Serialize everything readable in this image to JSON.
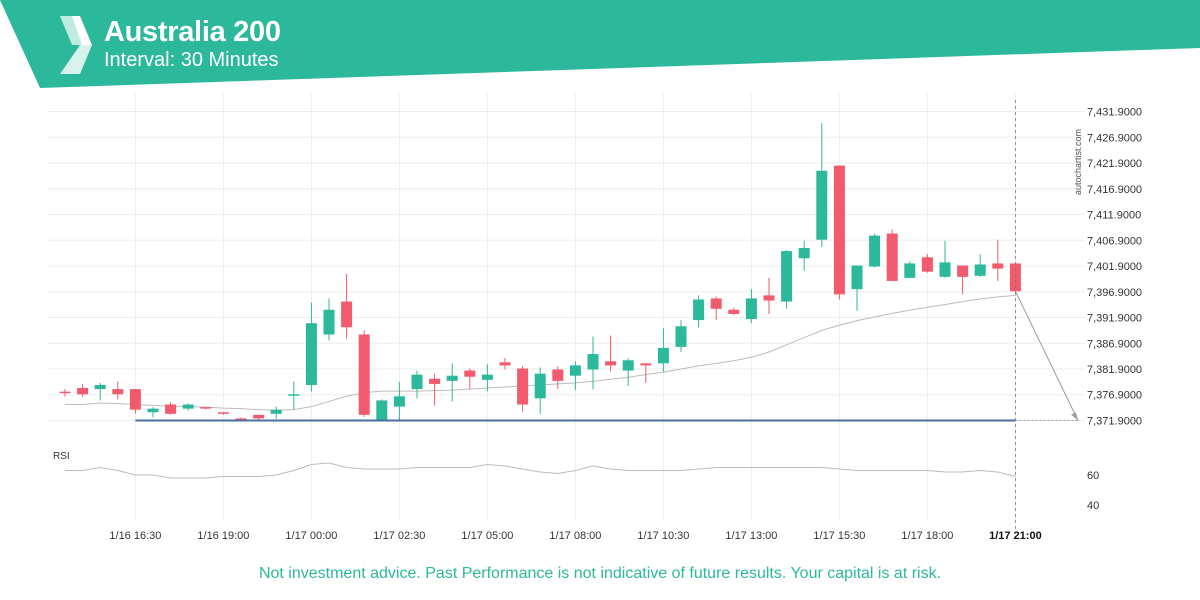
{
  "header": {
    "title": "Australia 200",
    "subtitle": "Interval: 30 Minutes"
  },
  "footer": {
    "note": "Not investment advice. Past Performance is not indicative of future results. Your capital is at risk."
  },
  "watermark": "autochartist.com",
  "colors": {
    "brand": "#2cb89b",
    "bull": "#2cb89b",
    "bear": "#f25a6e",
    "support_line": "#4a6fa5",
    "moving_average": "#bbbbbb",
    "rsi_line": "#bbbbbb",
    "grid": "#eeeeee"
  },
  "chart_data": {
    "type": "candlestick",
    "instrument": "Australia 200",
    "price_ticks": [
      "7,431.9000",
      "7,426.9000",
      "7,421.9000",
      "7,416.9000",
      "7,411.9000",
      "7,406.9000",
      "7,401.9000",
      "7,396.9000",
      "7,391.9000",
      "7,386.9000",
      "7,381.9000",
      "7,376.9000",
      "7,371.9000"
    ],
    "price_tick_values": [
      7431.9,
      7426.9,
      7421.9,
      7416.9,
      7411.9,
      7406.9,
      7401.9,
      7396.9,
      7391.9,
      7386.9,
      7381.9,
      7376.9,
      7371.9
    ],
    "ylim": [
      7368.5,
      7435.5
    ],
    "time_ticks": [
      "1/16 16:30",
      "1/16 19:00",
      "1/17 00:00",
      "1/17 02:30",
      "1/17 05:00",
      "1/17 08:00",
      "1/17 10:30",
      "1/17 13:00",
      "1/17 15:30",
      "1/17 18:00",
      "1/17 21:00"
    ],
    "time_tick_index": [
      4,
      9,
      14,
      19,
      24,
      29,
      34,
      39,
      44,
      49,
      54
    ],
    "time_tick_bold_index": 10,
    "candles": [
      {
        "o": 7377.5,
        "h": 7378.0,
        "l": 7376.5,
        "c": 7377.3
      },
      {
        "o": 7378.2,
        "h": 7379.0,
        "l": 7376.5,
        "c": 7377.0
      },
      {
        "o": 7378.0,
        "h": 7379.2,
        "l": 7375.8,
        "c": 7378.8
      },
      {
        "o": 7378.0,
        "h": 7379.5,
        "l": 7376.0,
        "c": 7377.0
      },
      {
        "o": 7378.0,
        "h": 7378.0,
        "l": 7373.2,
        "c": 7374.0
      },
      {
        "o": 7373.5,
        "h": 7374.5,
        "l": 7372.5,
        "c": 7374.2
      },
      {
        "o": 7375.0,
        "h": 7375.5,
        "l": 7373.0,
        "c": 7373.2
      },
      {
        "o": 7374.2,
        "h": 7375.2,
        "l": 7373.8,
        "c": 7375.0
      },
      {
        "o": 7374.5,
        "h": 7374.5,
        "l": 7374.0,
        "c": 7374.3
      },
      {
        "o": 7373.5,
        "h": 7373.5,
        "l": 7373.0,
        "c": 7373.3
      },
      {
        "o": 7372.3,
        "h": 7372.5,
        "l": 7371.9,
        "c": 7372.2
      },
      {
        "o": 7373.0,
        "h": 7373.0,
        "l": 7371.9,
        "c": 7372.3
      },
      {
        "o": 7373.2,
        "h": 7374.6,
        "l": 7372.2,
        "c": 7374.0
      },
      {
        "o": 7377.0,
        "h": 7379.5,
        "l": 7374.0,
        "c": 7377.0
      },
      {
        "o": 7378.8,
        "h": 7394.8,
        "l": 7377.5,
        "c": 7390.8
      },
      {
        "o": 7388.6,
        "h": 7395.6,
        "l": 7387.4,
        "c": 7393.4
      },
      {
        "o": 7395.0,
        "h": 7400.4,
        "l": 7387.8,
        "c": 7390.0
      },
      {
        "o": 7388.6,
        "h": 7389.4,
        "l": 7372.6,
        "c": 7373.0
      },
      {
        "o": 7372.0,
        "h": 7376.0,
        "l": 7371.9,
        "c": 7375.8
      },
      {
        "o": 7374.6,
        "h": 7379.4,
        "l": 7371.9,
        "c": 7376.6
      },
      {
        "o": 7378.0,
        "h": 7381.6,
        "l": 7376.2,
        "c": 7380.8
      },
      {
        "o": 7380.0,
        "h": 7381.0,
        "l": 7374.8,
        "c": 7379.0
      },
      {
        "o": 7379.6,
        "h": 7383.0,
        "l": 7375.6,
        "c": 7380.6
      },
      {
        "o": 7381.6,
        "h": 7382.0,
        "l": 7378.0,
        "c": 7380.4
      },
      {
        "o": 7379.8,
        "h": 7382.8,
        "l": 7377.6,
        "c": 7380.8
      },
      {
        "o": 7383.2,
        "h": 7384.0,
        "l": 7381.8,
        "c": 7382.6
      },
      {
        "o": 7382.0,
        "h": 7382.5,
        "l": 7373.6,
        "c": 7375.0
      },
      {
        "o": 7376.2,
        "h": 7382.2,
        "l": 7373.2,
        "c": 7381.0
      },
      {
        "o": 7381.8,
        "h": 7382.4,
        "l": 7378.0,
        "c": 7379.6
      },
      {
        "o": 7380.6,
        "h": 7383.4,
        "l": 7377.8,
        "c": 7382.6
      },
      {
        "o": 7381.8,
        "h": 7388.2,
        "l": 7378.0,
        "c": 7384.8
      },
      {
        "o": 7383.4,
        "h": 7388.4,
        "l": 7381.4,
        "c": 7382.6
      },
      {
        "o": 7381.6,
        "h": 7384.0,
        "l": 7378.6,
        "c": 7383.6
      },
      {
        "o": 7383.0,
        "h": 7383.0,
        "l": 7379.2,
        "c": 7382.6
      },
      {
        "o": 7383.0,
        "h": 7389.8,
        "l": 7381.4,
        "c": 7386.0
      },
      {
        "o": 7386.2,
        "h": 7391.4,
        "l": 7385.2,
        "c": 7390.2
      },
      {
        "o": 7391.4,
        "h": 7396.2,
        "l": 7390.0,
        "c": 7395.4
      },
      {
        "o": 7395.6,
        "h": 7396.0,
        "l": 7391.4,
        "c": 7393.6
      },
      {
        "o": 7393.4,
        "h": 7393.8,
        "l": 7392.4,
        "c": 7392.6
      },
      {
        "o": 7391.6,
        "h": 7397.4,
        "l": 7390.8,
        "c": 7395.6
      },
      {
        "o": 7396.2,
        "h": 7399.6,
        "l": 7392.6,
        "c": 7395.2
      },
      {
        "o": 7395.0,
        "h": 7405.0,
        "l": 7393.6,
        "c": 7404.8
      },
      {
        "o": 7403.4,
        "h": 7406.8,
        "l": 7401.0,
        "c": 7405.4
      },
      {
        "o": 7407.0,
        "h": 7429.6,
        "l": 7405.6,
        "c": 7420.4
      },
      {
        "o": 7421.4,
        "h": 7421.4,
        "l": 7395.4,
        "c": 7396.4
      },
      {
        "o": 7397.4,
        "h": 7402.0,
        "l": 7393.2,
        "c": 7402.0
      },
      {
        "o": 7401.8,
        "h": 7408.2,
        "l": 7401.6,
        "c": 7407.8
      },
      {
        "o": 7408.2,
        "h": 7409.0,
        "l": 7399.0,
        "c": 7399.0
      },
      {
        "o": 7399.6,
        "h": 7402.8,
        "l": 7399.6,
        "c": 7402.4
      },
      {
        "o": 7403.6,
        "h": 7404.2,
        "l": 7400.6,
        "c": 7400.8
      },
      {
        "o": 7399.8,
        "h": 7406.8,
        "l": 7399.6,
        "c": 7402.6
      },
      {
        "o": 7402.0,
        "h": 7402.0,
        "l": 7396.4,
        "c": 7399.8
      },
      {
        "o": 7400.0,
        "h": 7404.2,
        "l": 7399.8,
        "c": 7402.2
      },
      {
        "o": 7402.4,
        "h": 7407.0,
        "l": 7399.0,
        "c": 7401.4
      },
      {
        "o": 7402.4,
        "h": 7402.4,
        "l": 7396.6,
        "c": 7397.0
      }
    ],
    "moving_average": [
      7375.0,
      7375.0,
      7375.3,
      7375.2,
      7375.0,
      7374.8,
      7374.7,
      7374.6,
      7374.5,
      7374.3,
      7374.2,
      7374.0,
      7373.9,
      7374.0,
      7374.6,
      7375.6,
      7376.6,
      7377.3,
      7377.6,
      7377.6,
      7377.6,
      7377.7,
      7377.8,
      7378.0,
      7378.2,
      7378.4,
      7378.6,
      7378.8,
      7379.0,
      7379.2,
      7379.5,
      7379.9,
      7380.3,
      7380.8,
      7381.3,
      7381.9,
      7382.5,
      7383.0,
      7383.5,
      7384.2,
      7385.2,
      7386.6,
      7388.0,
      7389.4,
      7390.4,
      7391.3,
      7392.0,
      7392.7,
      7393.3,
      7393.9,
      7394.4,
      7395.0,
      7395.5,
      7395.9,
      7396.2
    ],
    "support_level": 7371.9,
    "projection": {
      "from_index": 54,
      "from_price": 7397.0,
      "to_price": 7371.9
    },
    "rsi": {
      "label": "RSI",
      "ticks": [
        60,
        40
      ],
      "ylim": [
        30,
        80
      ],
      "values": [
        63,
        63,
        65,
        63,
        60,
        60,
        58,
        58,
        58,
        59,
        59,
        59,
        60,
        63,
        67,
        68,
        65,
        64,
        64,
        64,
        65,
        65,
        65,
        65,
        67,
        66,
        64,
        62,
        61,
        63,
        66,
        64,
        63,
        63,
        63,
        63,
        64,
        65,
        65,
        65,
        65,
        65,
        65,
        65,
        64,
        63,
        63,
        63,
        63,
        63,
        62,
        62,
        63,
        62,
        59
      ]
    }
  }
}
